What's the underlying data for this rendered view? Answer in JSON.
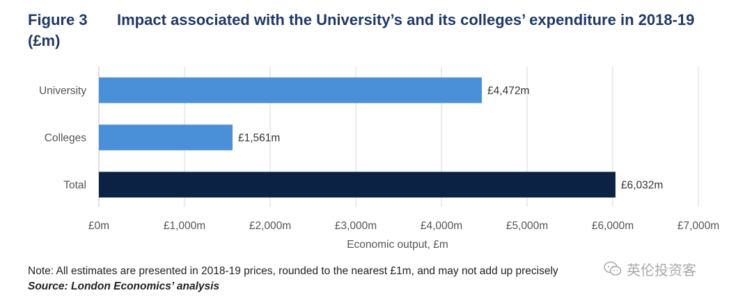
{
  "header": {
    "figure_label": "Figure 3",
    "title": "Impact associated with the University’s and its colleges’ expenditure in 2018-19",
    "title_cont": "(£m)"
  },
  "chart_data": {
    "type": "bar",
    "orientation": "horizontal",
    "categories": [
      "University",
      "Colleges",
      "Total"
    ],
    "values": [
      4472,
      1561,
      6032
    ],
    "data_labels": [
      "£4,472m",
      "£1,561m",
      "£6,032m"
    ],
    "bar_colors": [
      "#4a90d9",
      "#4a90d9",
      "#0b2244"
    ],
    "xlabel": "Economic output, £m",
    "xlim": [
      0,
      7000
    ],
    "xticks": [
      0,
      1000,
      2000,
      3000,
      4000,
      5000,
      6000,
      7000
    ],
    "xtick_labels": [
      "£0m",
      "£1,000m",
      "£2,000m",
      "£3,000m",
      "£4,000m",
      "£5,000m",
      "£6,000m",
      "£7,000m"
    ],
    "grid": true
  },
  "footer": {
    "note": "Note: All estimates are presented in 2018-19 prices, rounded to the nearest £1m, and may not add up precisely",
    "source": "Source: London Economics’ analysis"
  },
  "watermark": {
    "text": "英伦投资客",
    "icon": "wechat-icon"
  }
}
